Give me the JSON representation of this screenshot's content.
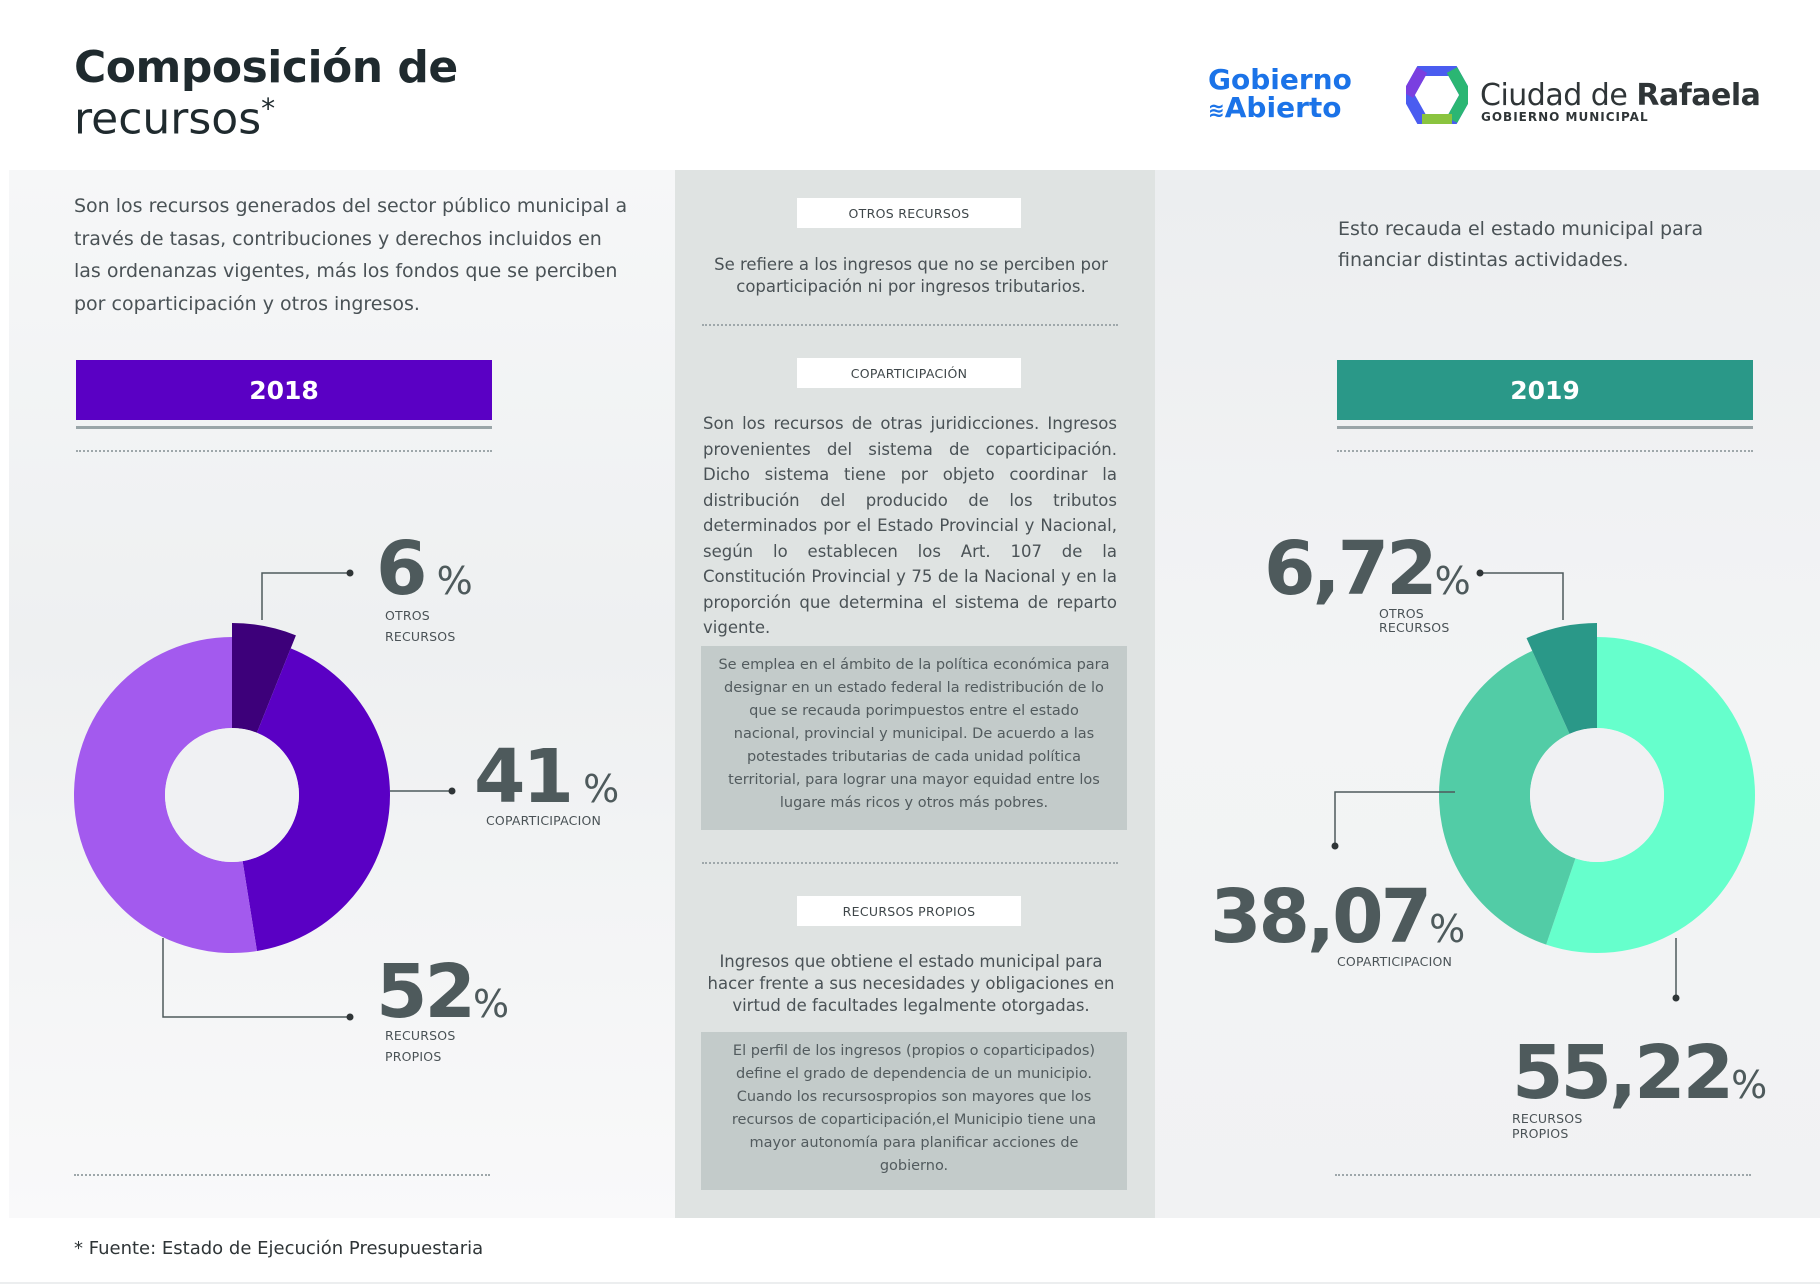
{
  "header": {
    "title_bold": "Composición de",
    "title_light": "recursos",
    "title_mark": "*",
    "logo_ga_line1": "Gobierno",
    "logo_ga_line2": "Abierto",
    "logo_city_regular": "Ciudad de ",
    "logo_city_bold": "Rafaela",
    "logo_city_sub": "GOBIERNO MUNICIPAL"
  },
  "left": {
    "intro": "Son los recursos generados del sector público municipal a través de tasas, contribuciones y derechos incluidos en las ordenanzas vigentes, más los fondos que se perciben por coparticipación y otros ingresos."
  },
  "right": {
    "intro": "Esto recauda el estado municipal para financiar distintas actividades."
  },
  "middle": {
    "otros": {
      "tag": "OTROS RECURSOS",
      "text": "Se refiere a los ingresos que no se perciben por coparticipación ni por ingresos tributarios."
    },
    "copart": {
      "tag": "COPARTICIPACIÓN",
      "text": "Son los recursos de otras juridicciones. Ingresos provenientes del sistema de coparticipación. Dicho sistema tiene por objeto coordinar la distribución del producido de los tributos determinados por el Estado Provincial y Nacional, según lo establecen los Art. 107 de la Constitución Provincial y 75 de la Nacional y en la proporción que determina el sistema de reparto vigente.",
      "box": "Se emplea en el ámbito de la política económica para designar en un estado federal la redistribución de lo que se recauda porimpuestos entre el estado nacional, provincial y municipal. De acuerdo a las potestades tributarias de cada unidad política territorial, para lograr una mayor equidad entre los lugare más ricos y otros más pobres."
    },
    "propios": {
      "tag": "RECURSOS PROPIOS",
      "text": "Ingresos que obtiene el estado municipal para hacer frente a sus necesidades y obligaciones en virtud de facultades legalmente otorgadas.",
      "box": "El perfil de los ingresos (propios o coparticipados) define el grado de dependencia de un municipio. Cuando los recursospropios son mayores que los recursos de coparticipación,el Municipio tiene una mayor autonomía para planificar acciones de gobierno."
    }
  },
  "footnote": "* Fuente: Estado de Ejecución Presupuestaria",
  "colors": {
    "purple_bar": "#5a00c4",
    "teal_bar": "#2a9888"
  },
  "chart_data": [
    {
      "type": "pie",
      "title": "2018",
      "categories": [
        "OTROS RECURSOS",
        "COPARTICIPACION",
        "RECURSOS PROPIOS"
      ],
      "values": [
        6,
        41,
        52
      ],
      "labels": {
        "otros": {
          "num": "6",
          "sign": " %",
          "cap1": "OTROS",
          "cap2": "RECURSOS"
        },
        "copart": {
          "num": "41",
          "sign": " %",
          "cap1": "COPARTICIPACION"
        },
        "propios": {
          "num": "52",
          "sign": "%",
          "cap1": "RECURSOS",
          "cap2": "PROPIOS"
        }
      },
      "colors": [
        "#3d007a",
        "#5a00c4",
        "#a35aee"
      ]
    },
    {
      "type": "pie",
      "title": "2019",
      "categories": [
        "OTROS RECURSOS",
        "COPARTICIPACION",
        "RECURSOS PROPIOS"
      ],
      "values": [
        6.72,
        38.07,
        55.22
      ],
      "labels": {
        "otros": {
          "num": "6,72",
          "sign": "%",
          "cap1": "OTROS",
          "cap2": "RECURSOS"
        },
        "copart": {
          "num": "38,07",
          "sign": "%",
          "cap1": "COPARTICIPACION"
        },
        "propios": {
          "num": "55,22",
          "sign": "%",
          "cap1": "RECURSOS",
          "cap2": "PROPIOS"
        }
      },
      "colors": [
        "#2a9888",
        "#52cca6",
        "#66ffcc"
      ]
    }
  ]
}
